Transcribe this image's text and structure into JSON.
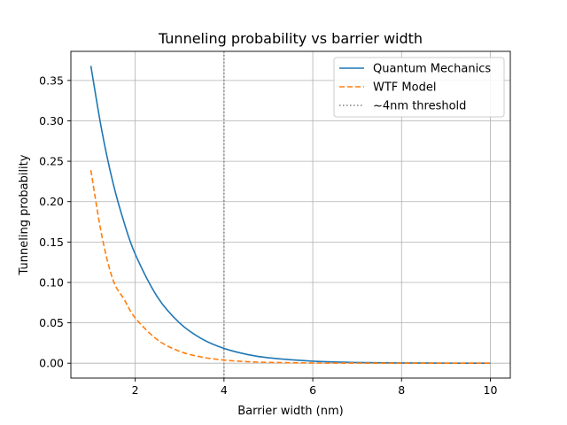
{
  "chart_data": {
    "type": "line",
    "title": "Tunneling probability vs barrier width",
    "xlabel": "Barrier width (nm)",
    "ylabel": "Tunneling probability",
    "xlim": [
      0.55,
      10.45
    ],
    "ylim": [
      -0.0184,
      0.386
    ],
    "xticks": [
      2,
      4,
      6,
      8,
      10
    ],
    "yticks": [
      0.0,
      0.05,
      0.1,
      0.15,
      0.2,
      0.25,
      0.3,
      0.35
    ],
    "ytick_labels": [
      "0.00",
      "0.05",
      "0.10",
      "0.15",
      "0.20",
      "0.25",
      "0.30",
      "0.35"
    ],
    "grid": true,
    "legend_position": "top-right",
    "series": [
      {
        "name": "Quantum Mechanics",
        "color": "#1f77b4",
        "style": "solid",
        "x": [
          1.0,
          1.25,
          1.5,
          1.75,
          2.0,
          2.5,
          3.0,
          3.5,
          4.0,
          4.5,
          5.0,
          6.0,
          7.0,
          8.0,
          9.0,
          10.0
        ],
        "y": [
          0.368,
          0.287,
          0.223,
          0.174,
          0.135,
          0.082,
          0.0498,
          0.0302,
          0.0183,
          0.0111,
          0.0067,
          0.0025,
          0.0009,
          0.0003,
          0.0001,
          0.0
        ]
      },
      {
        "name": "WTF Model",
        "color": "#ff7f0e",
        "style": "dashed",
        "x": [
          1.0,
          1.25,
          1.5,
          1.75,
          2.0,
          2.5,
          3.0,
          3.5,
          4.0,
          4.5,
          5.0,
          6.0,
          7.0,
          8.0,
          9.0,
          10.0
        ],
        "y": [
          0.239,
          0.157,
          0.103,
          0.079,
          0.056,
          0.029,
          0.0147,
          0.0076,
          0.0039,
          0.002,
          0.001,
          0.0003,
          0.0001,
          0.0,
          0.0,
          0.0
        ]
      }
    ],
    "vlines": [
      {
        "name": "~4nm threshold",
        "x": 4,
        "color": "#808080",
        "style": "dotted"
      }
    ]
  }
}
